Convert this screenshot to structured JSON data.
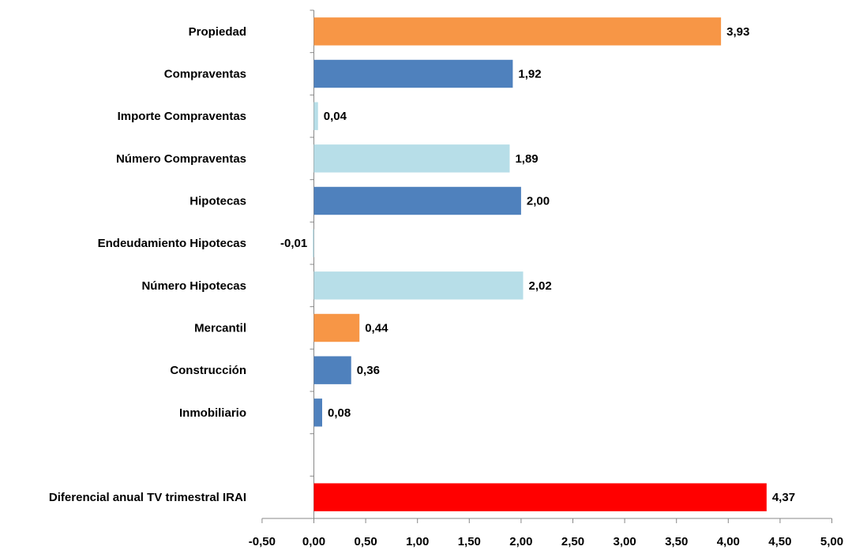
{
  "chart_data": {
    "type": "bar",
    "orientation": "horizontal",
    "categories": [
      "Propiedad",
      "Compraventas",
      "Importe Compraventas",
      "Número Compraventas",
      "Hipotecas",
      "Endeudamiento Hipotecas",
      "Número Hipotecas",
      "Mercantil",
      "Construcción",
      "Inmobiliario",
      "",
      "Diferencial anual TV trimestral IRAI"
    ],
    "values": [
      3.93,
      1.92,
      0.04,
      1.89,
      2.0,
      -0.01,
      2.02,
      0.44,
      0.36,
      0.08,
      null,
      4.37
    ],
    "value_labels": [
      "3,93",
      "1,92",
      "0,04",
      "1,89",
      "2,00",
      "-0,01",
      "2,02",
      "0,44",
      "0,36",
      "0,08",
      "",
      "4,37"
    ],
    "colors": [
      "#F79646",
      "#4F81BD",
      "#B7DEE8",
      "#B7DEE8",
      "#4F81BD",
      "#B7DEE8",
      "#B7DEE8",
      "#F79646",
      "#4F81BD",
      "#4F81BD",
      "",
      "#FF0000"
    ],
    "xlim": [
      -0.5,
      5.0
    ],
    "x_ticks": [
      -0.5,
      0,
      0.5,
      1.0,
      1.5,
      2.0,
      2.5,
      3.0,
      3.5,
      4.0,
      4.5,
      5.0
    ],
    "x_tick_labels": [
      "-0,50",
      "0,00",
      "0,50",
      "1,00",
      "1,50",
      "2,00",
      "2,50",
      "3,00",
      "3,50",
      "4,00",
      "4,50",
      "5,00"
    ],
    "grid": false,
    "legend": "none",
    "title": "",
    "xlabel": "",
    "ylabel": ""
  }
}
